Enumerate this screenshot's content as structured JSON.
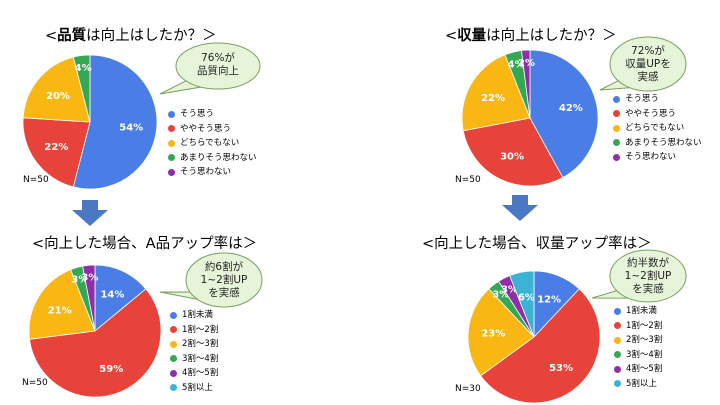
{
  "colors": [
    "#4a7ee6",
    "#e8433a",
    "#f9b714",
    "#34a853",
    "#8e2ea8",
    "#3bb3d6"
  ],
  "arrow_color": "#4a78c2",
  "callout_fill": "#e6f4d9",
  "callout_stroke": "#7aa05a",
  "chart_data": [
    {
      "type": "pie",
      "title_prefix": "<",
      "title_bold": "品質",
      "title_rest": "は向上はしたか？＞",
      "n_label": "N=50",
      "callout": [
        "76%が",
        "品質向上"
      ],
      "categories": [
        "そう思う",
        "ややそう思う",
        "どちらでもない",
        "あまりそう思わない",
        "そう思わない"
      ],
      "values": [
        54,
        22,
        20,
        4,
        0
      ],
      "labels": [
        "54%",
        "22%",
        "20%",
        "4%",
        ""
      ]
    },
    {
      "type": "pie",
      "title_prefix": "<",
      "title_bold": "収量",
      "title_rest": "は向上はしたか？＞",
      "n_label": "N=50",
      "callout": [
        "72%が",
        "収量UPを",
        "実感"
      ],
      "categories": [
        "そう思う",
        "ややそう思う",
        "どちらでもない",
        "あまりそう思わない",
        "そう思わない"
      ],
      "values": [
        42,
        30,
        22,
        4,
        2
      ],
      "labels": [
        "42%",
        "30%",
        "22%",
        "4%",
        "2%"
      ]
    },
    {
      "type": "pie",
      "title_prefix": "",
      "title_bold": "",
      "title_rest": "<向上した場合、A品アップ率は＞",
      "n_label": "N=50",
      "callout": [
        "約6割が",
        "1~2割UP",
        "を実感"
      ],
      "categories": [
        "1割未満",
        "1割～2割",
        "2割～3割",
        "3割～4割",
        "4割～5割",
        "5割以上"
      ],
      "values": [
        14,
        59,
        21,
        3,
        3,
        0
      ],
      "labels": [
        "14%",
        "59%",
        "21%",
        "3%",
        "3%",
        ""
      ]
    },
    {
      "type": "pie",
      "title_prefix": "",
      "title_bold": "",
      "title_rest": "<向上した場合、収量アップ率は＞",
      "n_label": "N=30",
      "callout": [
        "約半数が",
        "1~2割UP",
        "を実感"
      ],
      "categories": [
        "1割未満",
        "1割～2割",
        "2割～3割",
        "3割～4割",
        "4割～5割",
        "5割以上"
      ],
      "values": [
        12,
        53,
        23,
        3,
        3,
        6
      ],
      "labels": [
        "12%",
        "53%",
        "23%",
        "3%",
        "3%",
        "6%"
      ]
    }
  ]
}
